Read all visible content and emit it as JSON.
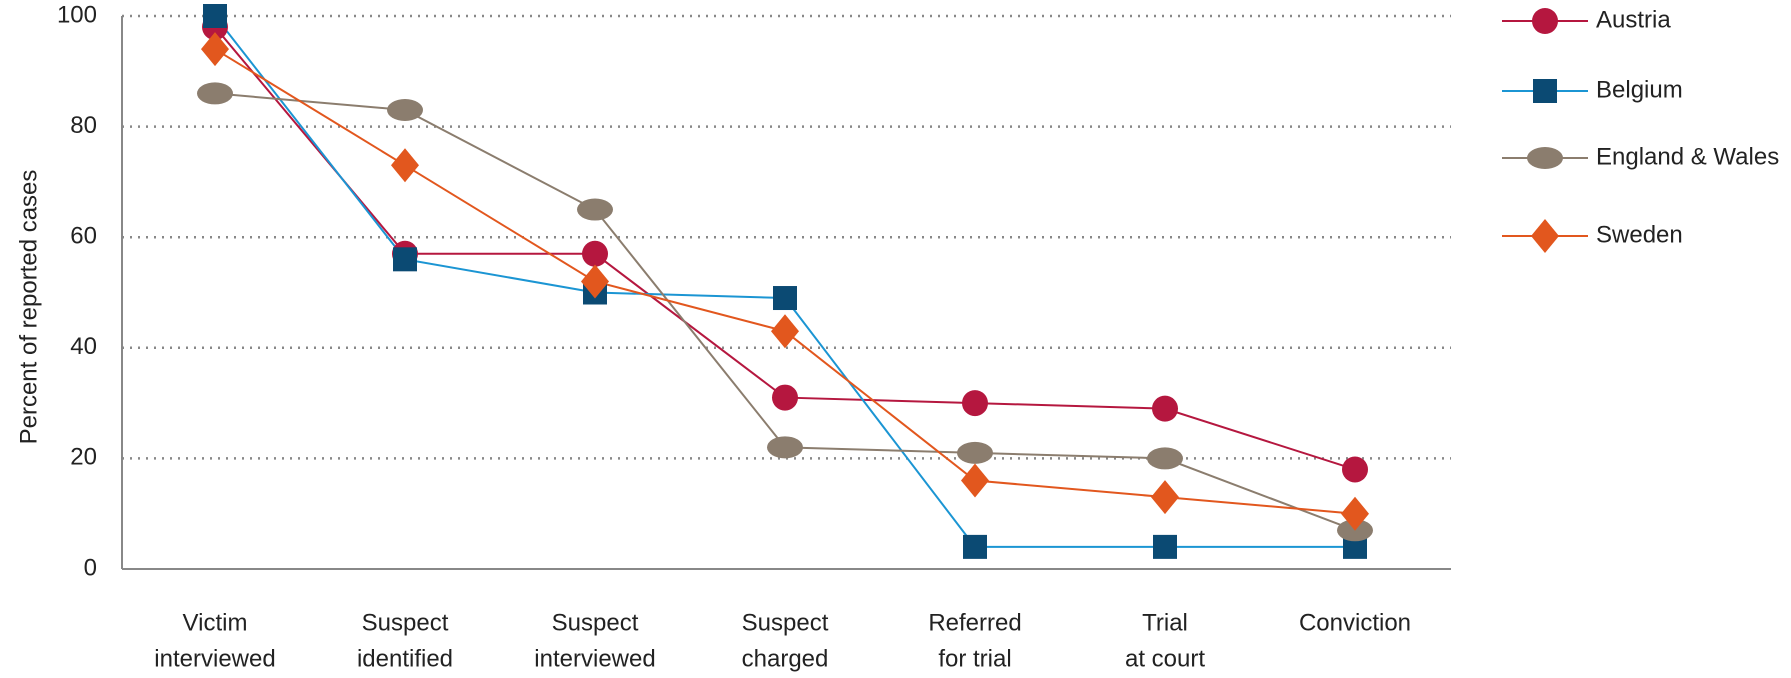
{
  "chart_data": {
    "type": "line",
    "y_label": "Percent of reported cases",
    "categories": [
      [
        "Victim",
        "interviewed"
      ],
      [
        "Suspect",
        "identified"
      ],
      [
        "Suspect",
        "interviewed"
      ],
      [
        "Suspect",
        "charged"
      ],
      [
        "Referred",
        "for trial"
      ],
      [
        "Trial",
        "at court"
      ],
      [
        "Conviction"
      ]
    ],
    "series": [
      {
        "name": "Austria",
        "color": "#b5173f",
        "line_color": "#b5173f",
        "marker": "circle",
        "values": [
          98,
          57,
          57,
          31,
          30,
          29,
          18
        ]
      },
      {
        "name": "Belgium",
        "color": "#0b4a73",
        "line_color": "#1b95d3",
        "marker": "square",
        "values": [
          100,
          56,
          50,
          49,
          4,
          4,
          4
        ]
      },
      {
        "name": "England & Wales",
        "color": "#8b7d6e",
        "line_color": "#8b7d6e",
        "marker": "ellipse",
        "values": [
          86,
          83,
          65,
          22,
          21,
          20,
          7
        ]
      },
      {
        "name": "Sweden",
        "color": "#e2571e",
        "line_color": "#e2571e",
        "marker": "diamond",
        "values": [
          94,
          73,
          52,
          43,
          16,
          13,
          10
        ]
      }
    ],
    "ylim": [
      0,
      100
    ],
    "yticks": [
      0,
      20,
      40,
      60,
      80,
      100
    ],
    "grid": true,
    "legend": "right"
  }
}
